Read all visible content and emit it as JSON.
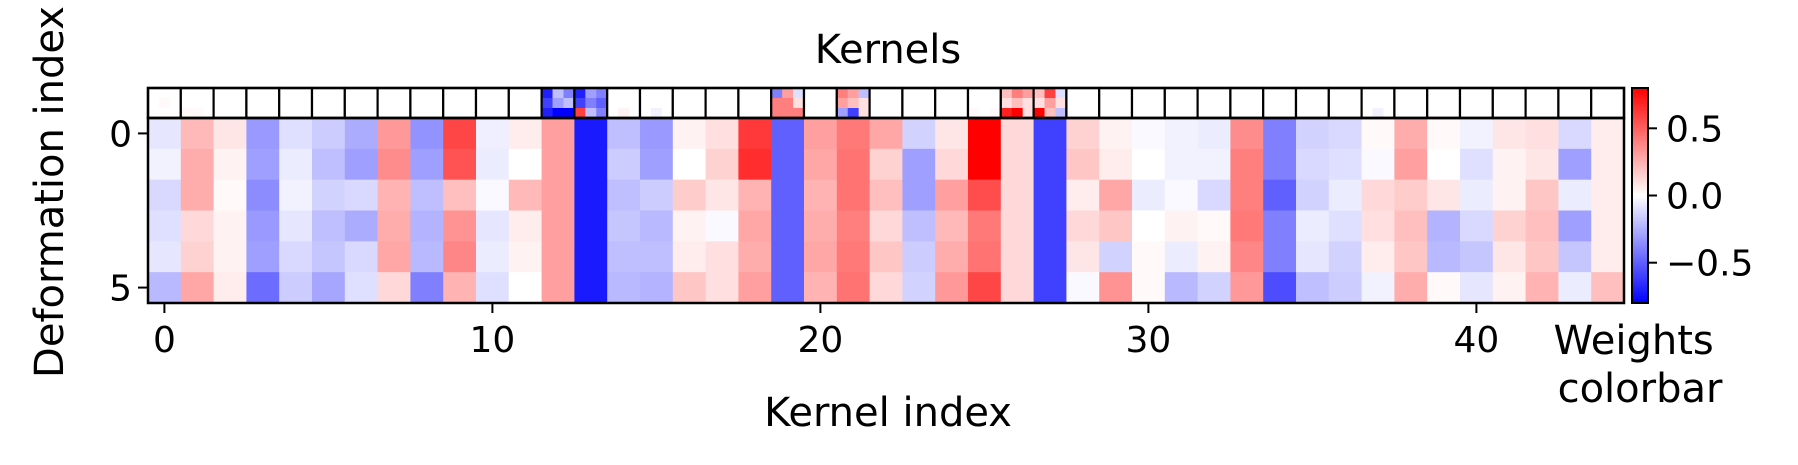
{
  "chart_data": {
    "type": "heatmap",
    "title": "Kernels",
    "xlabel": "Kernel index",
    "ylabel": "Deformation index",
    "x_ticks": [
      0,
      10,
      20,
      30,
      40
    ],
    "y_ticks": [
      0,
      5
    ],
    "n_kernels": 45,
    "n_deformations": 6,
    "color_limits": [
      -0.8,
      0.8
    ],
    "colormap": "bwr",
    "colors": {
      "negative": "#0000ff",
      "zero": "#ffffff",
      "positive": "#ff0000"
    },
    "colorbar": {
      "label": "Weights colorbar",
      "ticks": [
        0.5,
        0.0,
        -0.5
      ],
      "tick_labels": [
        "0.5",
        "0.0",
        "−0.5"
      ]
    },
    "values": [
      [
        -0.08,
        0.22,
        0.08,
        -0.32,
        -0.1,
        -0.16,
        -0.26,
        0.32,
        -0.34,
        0.58,
        -0.05,
        0.06,
        0.3,
        -0.72,
        -0.2,
        -0.32,
        0.04,
        0.1,
        0.62,
        -0.5,
        0.3,
        0.42,
        0.28,
        -0.14,
        0.08,
        0.8,
        0.12,
        -0.6,
        0.14,
        0.04,
        -0.02,
        -0.04,
        -0.06,
        0.36,
        -0.4,
        -0.14,
        -0.12,
        0.02,
        0.26,
        0.02,
        -0.04,
        0.08,
        0.1,
        -0.12,
        0.06
      ],
      [
        -0.04,
        0.26,
        0.04,
        -0.3,
        -0.06,
        -0.2,
        -0.3,
        0.36,
        -0.3,
        0.54,
        -0.06,
        0.0,
        0.3,
        -0.72,
        -0.16,
        -0.3,
        0.0,
        0.14,
        0.66,
        -0.5,
        0.28,
        0.44,
        0.14,
        -0.3,
        0.12,
        0.8,
        0.12,
        -0.6,
        0.18,
        0.06,
        0.0,
        -0.04,
        -0.04,
        0.4,
        -0.4,
        -0.12,
        -0.1,
        -0.02,
        0.3,
        0.0,
        -0.1,
        0.04,
        0.08,
        -0.3,
        0.06
      ],
      [
        -0.12,
        0.26,
        0.02,
        -0.36,
        -0.04,
        -0.14,
        -0.12,
        0.24,
        -0.2,
        0.2,
        -0.02,
        0.22,
        0.3,
        -0.72,
        -0.2,
        -0.16,
        0.16,
        0.08,
        0.24,
        -0.5,
        0.24,
        0.44,
        0.2,
        -0.3,
        0.3,
        0.56,
        0.12,
        -0.6,
        0.06,
        0.28,
        -0.06,
        -0.02,
        -0.12,
        0.4,
        -0.5,
        -0.14,
        -0.06,
        0.12,
        0.16,
        0.08,
        -0.06,
        0.04,
        0.18,
        -0.06,
        0.06
      ],
      [
        -0.1,
        0.12,
        0.04,
        -0.32,
        -0.08,
        -0.2,
        -0.26,
        0.26,
        -0.24,
        0.34,
        -0.08,
        0.06,
        0.3,
        -0.72,
        -0.18,
        -0.22,
        0.04,
        -0.02,
        0.28,
        -0.5,
        0.26,
        0.4,
        0.12,
        -0.2,
        0.22,
        0.42,
        0.12,
        -0.6,
        0.12,
        0.18,
        0.0,
        0.04,
        0.02,
        0.42,
        -0.4,
        -0.06,
        -0.1,
        0.1,
        0.2,
        -0.24,
        -0.12,
        0.14,
        0.2,
        -0.3,
        0.06
      ],
      [
        -0.08,
        0.14,
        0.04,
        -0.3,
        -0.12,
        -0.18,
        -0.12,
        0.28,
        -0.22,
        0.38,
        -0.06,
        0.04,
        0.3,
        -0.72,
        -0.2,
        -0.2,
        0.06,
        0.1,
        0.26,
        -0.5,
        0.28,
        0.42,
        0.18,
        -0.16,
        0.26,
        0.44,
        0.12,
        -0.6,
        0.08,
        -0.14,
        0.02,
        -0.06,
        0.04,
        0.38,
        -0.4,
        -0.08,
        -0.14,
        0.06,
        0.18,
        -0.22,
        -0.18,
        0.08,
        0.18,
        -0.18,
        0.06
      ],
      [
        -0.22,
        0.28,
        0.06,
        -0.46,
        -0.16,
        -0.28,
        -0.1,
        0.12,
        -0.4,
        0.24,
        -0.1,
        0.0,
        0.3,
        -0.72,
        -0.22,
        -0.24,
        0.18,
        0.1,
        0.3,
        -0.5,
        0.24,
        0.44,
        0.12,
        -0.14,
        0.32,
        0.58,
        0.12,
        -0.6,
        -0.02,
        0.34,
        0.02,
        -0.22,
        -0.14,
        0.32,
        -0.56,
        -0.2,
        -0.16,
        -0.04,
        0.26,
        0.02,
        -0.08,
        0.04,
        0.24,
        -0.06,
        0.2
      ]
    ],
    "kernel_patches": [
      [
        [
          0.0,
          0.0,
          0.0
        ],
        [
          0.0,
          0.02,
          0.0
        ],
        [
          0.0,
          0.0,
          0.0
        ]
      ],
      [
        [
          0.0,
          0.0,
          0.0
        ],
        [
          0.0,
          0.0,
          0.0
        ],
        [
          0.02,
          0.02,
          0.0
        ]
      ],
      [
        [
          0.0,
          0.0,
          0.0
        ],
        [
          0.0,
          0.0,
          0.0
        ],
        [
          0.0,
          0.0,
          0.0
        ]
      ],
      [
        [
          0.0,
          0.0,
          0.0
        ],
        [
          0.0,
          0.0,
          0.0
        ],
        [
          0.0,
          0.0,
          0.0
        ]
      ],
      [
        [
          0.0,
          0.0,
          0.0
        ],
        [
          0.0,
          0.0,
          0.0
        ],
        [
          0.0,
          0.0,
          0.0
        ]
      ],
      [
        [
          0.0,
          0.0,
          0.0
        ],
        [
          0.0,
          0.0,
          0.0
        ],
        [
          0.0,
          0.0,
          0.0
        ]
      ],
      [
        [
          0.0,
          0.0,
          0.0
        ],
        [
          0.0,
          0.0,
          0.0
        ],
        [
          0.0,
          0.0,
          0.0
        ]
      ],
      [
        [
          0.0,
          0.0,
          0.0
        ],
        [
          0.0,
          0.0,
          0.0
        ],
        [
          0.0,
          0.0,
          0.0
        ]
      ],
      [
        [
          0.0,
          0.0,
          0.0
        ],
        [
          0.0,
          0.0,
          0.0
        ],
        [
          0.0,
          0.0,
          0.0
        ]
      ],
      [
        [
          0.0,
          0.0,
          0.0
        ],
        [
          0.0,
          0.0,
          0.0
        ],
        [
          0.0,
          0.0,
          0.0
        ]
      ],
      [
        [
          0.0,
          0.0,
          0.0
        ],
        [
          0.0,
          0.0,
          0.0
        ],
        [
          0.0,
          0.0,
          0.0
        ]
      ],
      [
        [
          0.0,
          0.0,
          0.0
        ],
        [
          0.0,
          0.0,
          0.0
        ],
        [
          0.0,
          0.0,
          0.0
        ]
      ],
      [
        [
          -0.7,
          -0.2,
          -0.4
        ],
        [
          -0.6,
          -0.3,
          -0.2
        ],
        [
          -0.7,
          -0.8,
          -0.8
        ]
      ],
      [
        [
          -0.7,
          -0.3,
          -0.4
        ],
        [
          -0.6,
          -0.4,
          -0.5
        ],
        [
          0.6,
          -0.2,
          -0.4
        ]
      ],
      [
        [
          0.0,
          0.0,
          0.0
        ],
        [
          0.0,
          0.0,
          0.0
        ],
        [
          0.0,
          0.04,
          0.0
        ]
      ],
      [
        [
          0.0,
          0.0,
          0.0
        ],
        [
          0.0,
          0.0,
          0.0
        ],
        [
          0.0,
          -0.04,
          0.0
        ]
      ],
      [
        [
          0.0,
          0.0,
          0.0
        ],
        [
          0.0,
          0.0,
          0.0
        ],
        [
          0.0,
          0.0,
          0.0
        ]
      ],
      [
        [
          0.0,
          0.0,
          0.0
        ],
        [
          0.0,
          0.0,
          0.0
        ],
        [
          0.0,
          0.0,
          0.0
        ]
      ],
      [
        [
          0.0,
          0.0,
          0.0
        ],
        [
          0.0,
          0.0,
          0.0
        ],
        [
          0.0,
          0.0,
          0.0
        ]
      ],
      [
        [
          -0.4,
          0.3,
          -0.1
        ],
        [
          0.4,
          0.4,
          0.1
        ],
        [
          0.4,
          0.4,
          0.4
        ]
      ],
      [
        [
          0.0,
          0.0,
          0.0
        ],
        [
          0.0,
          0.0,
          0.0
        ],
        [
          0.0,
          0.0,
          0.0
        ]
      ],
      [
        [
          0.4,
          0.3,
          -0.2
        ],
        [
          0.3,
          0.2,
          0.1
        ],
        [
          -0.3,
          -0.6,
          0.1
        ]
      ],
      [
        [
          0.0,
          0.0,
          0.0
        ],
        [
          0.0,
          0.0,
          0.0
        ],
        [
          0.0,
          0.0,
          0.0
        ]
      ],
      [
        [
          0.0,
          0.0,
          0.0
        ],
        [
          0.0,
          0.0,
          0.0
        ],
        [
          0.0,
          0.0,
          0.0
        ]
      ],
      [
        [
          0.0,
          0.0,
          0.0
        ],
        [
          0.0,
          0.0,
          0.0
        ],
        [
          0.0,
          0.0,
          0.0
        ]
      ],
      [
        [
          0.0,
          0.0,
          0.0
        ],
        [
          0.0,
          0.0,
          0.0
        ],
        [
          0.02,
          0.0,
          0.02
        ]
      ],
      [
        [
          0.2,
          0.4,
          0.3
        ],
        [
          0.1,
          0.2,
          0.1
        ],
        [
          0.7,
          0.8,
          0.1
        ]
      ],
      [
        [
          0.2,
          0.6,
          -0.1
        ],
        [
          0.1,
          0.3,
          0.1
        ],
        [
          0.9,
          0.2,
          -0.2
        ]
      ],
      [
        [
          0.0,
          0.0,
          0.0
        ],
        [
          0.0,
          0.0,
          0.0
        ],
        [
          0.0,
          0.0,
          0.0
        ]
      ],
      [
        [
          0.0,
          0.0,
          0.0
        ],
        [
          0.0,
          0.0,
          0.0
        ],
        [
          0.0,
          0.0,
          0.0
        ]
      ],
      [
        [
          0.0,
          0.0,
          0.0
        ],
        [
          0.0,
          0.0,
          0.0
        ],
        [
          0.0,
          0.0,
          0.0
        ]
      ],
      [
        [
          0.0,
          0.0,
          0.0
        ],
        [
          0.0,
          0.0,
          0.0
        ],
        [
          0.0,
          0.0,
          0.0
        ]
      ],
      [
        [
          0.0,
          0.0,
          0.0
        ],
        [
          0.0,
          0.0,
          0.0
        ],
        [
          0.0,
          0.0,
          0.0
        ]
      ],
      [
        [
          0.0,
          0.0,
          0.0
        ],
        [
          0.0,
          0.0,
          0.0
        ],
        [
          0.0,
          0.0,
          0.0
        ]
      ],
      [
        [
          0.0,
          0.0,
          0.0
        ],
        [
          0.0,
          0.0,
          0.0
        ],
        [
          0.0,
          0.0,
          0.0
        ]
      ],
      [
        [
          0.0,
          0.0,
          0.0
        ],
        [
          0.0,
          0.0,
          0.0
        ],
        [
          0.0,
          0.0,
          0.0
        ]
      ],
      [
        [
          0.0,
          0.0,
          0.0
        ],
        [
          0.0,
          0.0,
          0.0
        ],
        [
          0.0,
          0.0,
          0.0
        ]
      ],
      [
        [
          0.0,
          0.0,
          0.0
        ],
        [
          0.0,
          0.0,
          0.0
        ],
        [
          0.0,
          -0.04,
          0.0
        ]
      ],
      [
        [
          0.0,
          0.0,
          0.0
        ],
        [
          0.0,
          0.0,
          0.0
        ],
        [
          0.0,
          0.0,
          0.0
        ]
      ],
      [
        [
          0.0,
          0.0,
          0.0
        ],
        [
          0.0,
          0.0,
          0.0
        ],
        [
          0.0,
          0.0,
          0.0
        ]
      ],
      [
        [
          0.0,
          0.0,
          0.0
        ],
        [
          0.0,
          0.0,
          0.0
        ],
        [
          0.0,
          0.0,
          0.0
        ]
      ],
      [
        [
          0.0,
          0.0,
          0.0
        ],
        [
          0.0,
          0.0,
          0.0
        ],
        [
          0.0,
          0.0,
          0.0
        ]
      ],
      [
        [
          0.0,
          0.0,
          0.0
        ],
        [
          0.0,
          0.0,
          0.0
        ],
        [
          0.0,
          0.0,
          0.0
        ]
      ],
      [
        [
          0.0,
          0.0,
          0.0
        ],
        [
          0.0,
          0.0,
          0.0
        ],
        [
          0.0,
          0.0,
          0.0
        ]
      ],
      [
        [
          0.0,
          0.0,
          0.0
        ],
        [
          0.0,
          0.0,
          0.0
        ],
        [
          0.0,
          0.0,
          0.0
        ]
      ]
    ]
  }
}
